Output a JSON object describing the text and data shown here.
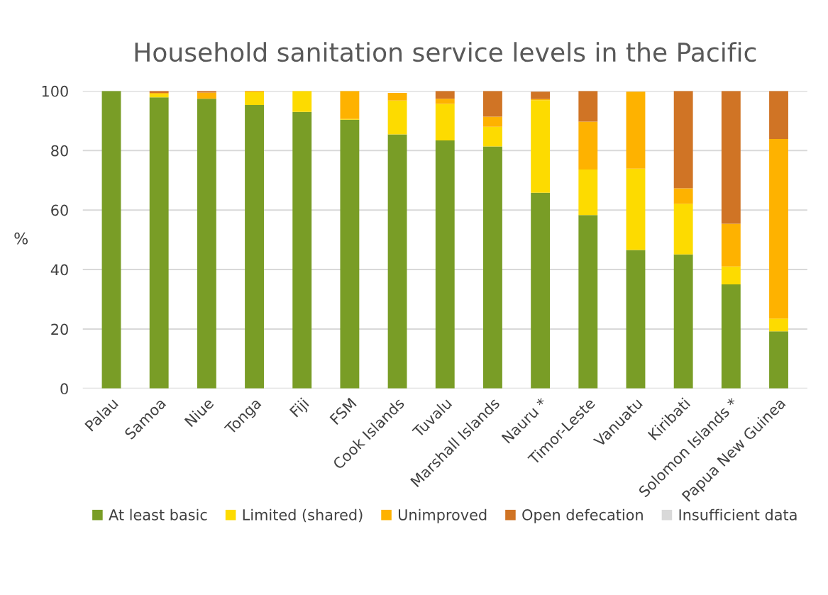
{
  "chart_data": {
    "type": "bar",
    "title": "Household sanitation service levels in the Pacific",
    "ylabel": "%",
    "categories": [
      "Palau",
      "Samoa",
      "Niue",
      "Tonga",
      "Fiji",
      "FSM",
      "Cook Islands",
      "Tuvalu",
      "Marshall Islands",
      "Nauru *",
      "Timor-Leste",
      "Vanuatu",
      "Kiribati",
      "Solomon Islands *",
      "Papua New Guinea"
    ],
    "stacked": true,
    "ylim": [
      0,
      100
    ],
    "yticks": [
      0,
      20,
      40,
      60,
      80,
      100
    ],
    "grid": "y",
    "legend": "bottom",
    "series": [
      {
        "name": "At least basic",
        "color": "#799d26",
        "values": [
          100,
          97.9,
          97.4,
          95.3,
          93.0,
          90.4,
          85.4,
          83.4,
          81.4,
          65.8,
          58.3,
          46.6,
          45.1,
          35.0,
          19.2
        ]
      },
      {
        "name": "Limited (shared)",
        "color": "#fddb00",
        "values": [
          0,
          1.1,
          0,
          4.3,
          7.0,
          0.2,
          11.4,
          12.3,
          6.6,
          31.1,
          15.3,
          27.3,
          17.0,
          6.0,
          4.3
        ]
      },
      {
        "name": "Unimproved",
        "color": "#feb200",
        "values": [
          0,
          0.4,
          2.1,
          0.4,
          0,
          9.4,
          2.6,
          1.7,
          3.4,
          0.4,
          16.1,
          25.9,
          5.2,
          14.4,
          60.4
        ]
      },
      {
        "name": "Open defecation",
        "color": "#d07425",
        "values": [
          0,
          0.6,
          0.5,
          0,
          0,
          0,
          0,
          2.6,
          8.6,
          2.5,
          10.3,
          0,
          32.7,
          44.6,
          16.1
        ]
      },
      {
        "name": "Insufficient data",
        "color": "#d9d9d9",
        "values": [
          null,
          null,
          null,
          null,
          null,
          null,
          null,
          null,
          null,
          null,
          null,
          null,
          null,
          null,
          null
        ]
      }
    ]
  }
}
